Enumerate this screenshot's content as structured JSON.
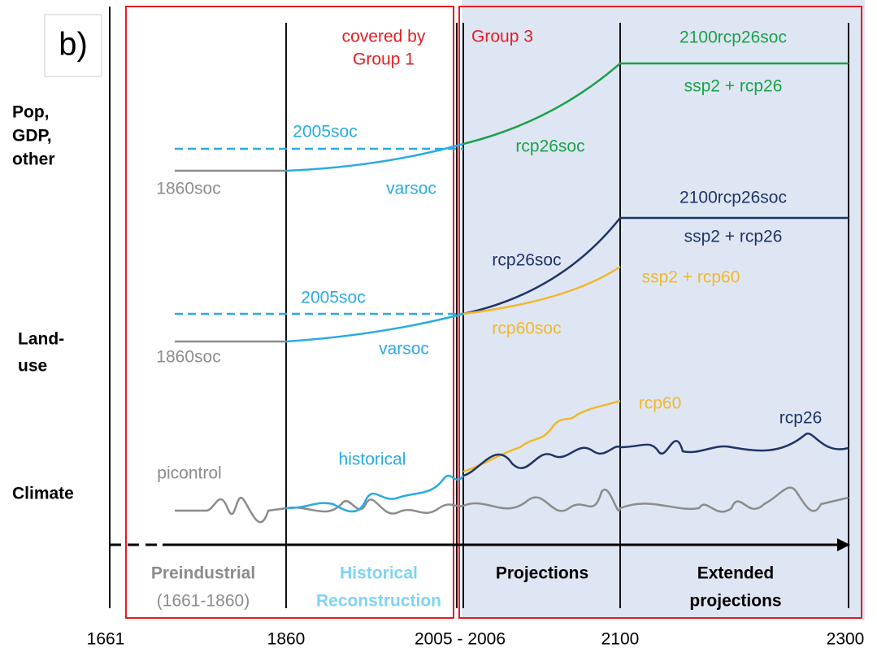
{
  "panel_label": "b)",
  "groups": {
    "group1": [
      "covered by",
      "Group 1"
    ],
    "group3": "Group 3"
  },
  "rows": {
    "pop": [
      "Pop,",
      "GDP,",
      "other"
    ],
    "landuse": [
      "Land-",
      "use"
    ],
    "climate": "Climate"
  },
  "curve_labels": {
    "pop": {
      "fixed": "2005soc",
      "pre": "1860soc",
      "var": "varsoc",
      "proj": "rcp26soc",
      "ext": "2100rcp26soc",
      "scen": "ssp2 + rcp26"
    },
    "landuse": {
      "fixed": "2005soc",
      "pre": "1860soc",
      "var": "varsoc",
      "proj26": "rcp26soc",
      "ext": "2100rcp26soc",
      "scen26": "ssp2 + rcp26",
      "scen60": "ssp2 + rcp60",
      "proj60": "rcp60soc"
    },
    "climate": {
      "rcp60": "rcp60",
      "rcp26": "rcp26",
      "hist": "historical",
      "pi": "picontrol"
    }
  },
  "periods": {
    "pre": [
      "Preindustrial",
      "(1661-1860)"
    ],
    "hist": [
      "Historical",
      "Reconstruction"
    ],
    "proj": "Projections",
    "ext": [
      "Extended",
      "projections"
    ]
  },
  "years": [
    "1661",
    "1860",
    "2005 - 2006",
    "2100",
    "2300"
  ]
}
